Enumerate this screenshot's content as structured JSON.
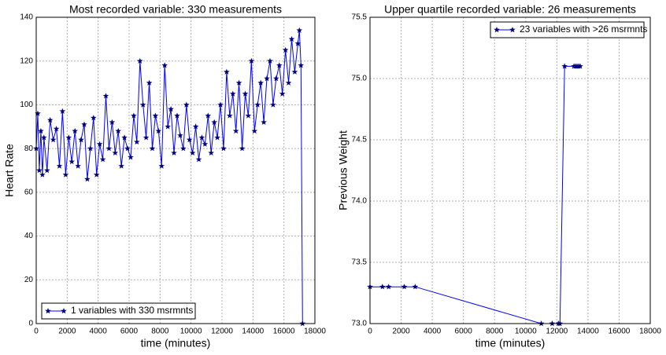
{
  "chart_data": [
    {
      "type": "line",
      "title": "Most recorded variable: 330 measurements",
      "xlabel": "time (minutes)",
      "ylabel": "Heart Rate",
      "x": [
        0,
        100,
        200,
        300,
        400,
        500,
        700,
        900,
        1100,
        1300,
        1500,
        1700,
        1900,
        2100,
        2300,
        2500,
        2700,
        2900,
        3100,
        3300,
        3500,
        3700,
        3900,
        4100,
        4300,
        4500,
        4700,
        4900,
        5100,
        5300,
        5500,
        5700,
        5900,
        6100,
        6300,
        6500,
        6700,
        6900,
        7100,
        7300,
        7500,
        7700,
        7900,
        8100,
        8300,
        8500,
        8700,
        8900,
        9100,
        9300,
        9500,
        9700,
        9900,
        10100,
        10300,
        10500,
        10700,
        10900,
        11100,
        11300,
        11500,
        11700,
        11900,
        12100,
        12300,
        12500,
        12700,
        12900,
        13100,
        13300,
        13500,
        13700,
        13900,
        14100,
        14300,
        14500,
        14700,
        14900,
        15100,
        15300,
        15500,
        15700,
        15900,
        16100,
        16300,
        16500,
        16700,
        16900,
        17000,
        17100,
        17200
      ],
      "series": [
        {
          "name": "1 variables with 330 msrmnts",
          "color": "#0000ff",
          "marker_color": "#000080",
          "values": [
            80,
            96,
            70,
            88,
            68,
            85,
            70,
            93,
            84,
            89,
            72,
            97,
            68,
            85,
            74,
            88,
            72,
            84,
            91,
            66,
            80,
            94,
            68,
            82,
            75,
            104,
            80,
            92,
            78,
            88,
            72,
            85,
            80,
            76,
            95,
            83,
            120,
            100,
            85,
            110,
            80,
            95,
            88,
            72,
            118,
            90,
            98,
            78,
            95,
            86,
            80,
            100,
            84,
            78,
            90,
            75,
            85,
            82,
            95,
            78,
            92,
            85,
            100,
            80,
            115,
            95,
            105,
            88,
            110,
            80,
            105,
            95,
            120,
            88,
            100,
            110,
            92,
            112,
            120,
            100,
            112,
            118,
            105,
            125,
            110,
            130,
            115,
            128,
            134,
            118,
            0
          ]
        }
      ],
      "xlim": [
        0,
        18000
      ],
      "xticks": [
        0,
        2000,
        4000,
        6000,
        8000,
        10000,
        12000,
        14000,
        16000,
        18000
      ],
      "ylim": [
        0,
        140
      ],
      "yticks": [
        0,
        20,
        40,
        60,
        80,
        100,
        120,
        140
      ],
      "grid": true,
      "legend": "lower left"
    },
    {
      "type": "line",
      "title": "Upper quartile recorded variable: 26 measurements",
      "xlabel": "time (minutes)",
      "ylabel": "Previous Weight",
      "x": [
        0,
        800,
        1200,
        2200,
        2900,
        11000,
        11700,
        12100,
        12200,
        12500,
        13100,
        13200,
        13300,
        13400,
        13500
      ],
      "series": [
        {
          "name": "23 variables with >26 msrmnts",
          "color": "#0000ff",
          "marker_color": "#000080",
          "values": [
            73.3,
            73.3,
            73.3,
            73.3,
            73.3,
            73.0,
            73.0,
            73.0,
            73.0,
            75.1,
            75.1,
            75.1,
            75.1,
            75.1,
            75.1
          ]
        }
      ],
      "xlim": [
        0,
        18000
      ],
      "xticks": [
        0,
        2000,
        4000,
        6000,
        8000,
        10000,
        12000,
        14000,
        16000,
        18000
      ],
      "ylim": [
        73.0,
        75.5
      ],
      "yticks": [
        {
          "value": 73,
          "label": "73.0"
        },
        73.5,
        {
          "value": 74,
          "label": "74.0"
        },
        74.5,
        {
          "value": 75,
          "label": "75.0"
        },
        75.5
      ],
      "grid": true,
      "legend": "upper right"
    }
  ]
}
